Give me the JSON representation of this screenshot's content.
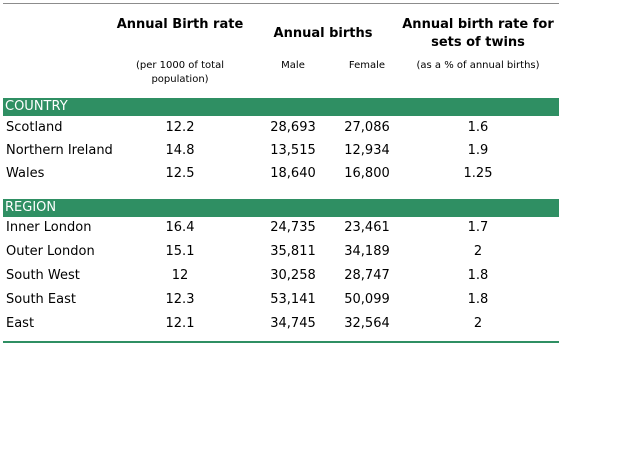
{
  "header": {
    "birth_rate_title": "Annual Birth rate",
    "birth_rate_sub": "(per 1000 of total population)",
    "births_title": "Annual births",
    "male_label": "Male",
    "female_label": "Female",
    "twins_title": "Annual birth rate for sets of twins",
    "twins_sub": "(as a % of annual births)"
  },
  "sections": [
    {
      "label": "COUNTRY",
      "rows": [
        {
          "name": "Scotland",
          "rate": "12.2",
          "male": "28,693",
          "female": "27,086",
          "twins": "1.6"
        },
        {
          "name": "Northern Ireland",
          "rate": "14.8",
          "male": "13,515",
          "female": "12,934",
          "twins": "1.9"
        },
        {
          "name": "Wales",
          "rate": "12.5",
          "male": "18,640",
          "female": "16,800",
          "twins": "1.25"
        }
      ]
    },
    {
      "label": "REGION",
      "rows": [
        {
          "name": "Inner London",
          "rate": "16.4",
          "male": "24,735",
          "female": "23,461",
          "twins": "1.7"
        },
        {
          "name": "Outer London",
          "rate": "15.1",
          "male": "35,811",
          "female": "34,189",
          "twins": "2"
        },
        {
          "name": "South West",
          "rate": "12",
          "male": "30,258",
          "female": "28,747",
          "twins": "1.8"
        },
        {
          "name": "South East",
          "rate": "12.3",
          "male": "53,141",
          "female": "50,099",
          "twins": "1.8"
        },
        {
          "name": "East",
          "rate": "12.1",
          "male": "34,745",
          "female": "32,564",
          "twins": "2"
        }
      ]
    }
  ]
}
